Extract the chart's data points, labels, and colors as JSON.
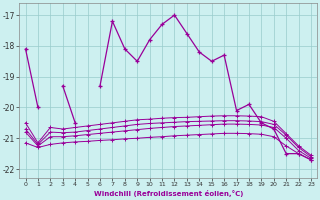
{
  "bg_color": "#cdf0f0",
  "grid_color": "#99cccc",
  "line_color": "#990099",
  "xlabel": "Windchill (Refroidissement éolien,°C)",
  "ylim": [
    -22.3,
    -16.6
  ],
  "yticks": [
    -22,
    -21,
    -20,
    -19,
    -18,
    -17
  ],
  "xticks": [
    0,
    1,
    2,
    3,
    4,
    5,
    6,
    7,
    8,
    9,
    10,
    11,
    12,
    13,
    14,
    15,
    16,
    17,
    18,
    19,
    20,
    21,
    22,
    23
  ],
  "main_line": [
    -18.1,
    -20.0,
    null,
    -19.3,
    -20.5,
    null,
    -19.3,
    -17.2,
    -18.1,
    -18.5,
    -17.8,
    -17.3,
    -17.0,
    -17.6,
    -18.2,
    -18.5,
    -18.3,
    -20.1,
    -19.9,
    -20.5,
    -20.7,
    -21.5,
    -21.5,
    -21.7
  ],
  "smooth_a": [
    -20.5,
    -21.15,
    -20.65,
    -20.7,
    -20.65,
    -20.6,
    -20.55,
    -20.5,
    -20.45,
    -20.4,
    -20.38,
    -20.35,
    -20.33,
    -20.32,
    -20.3,
    -20.28,
    -20.27,
    -20.27,
    -20.28,
    -20.3,
    -20.45,
    -20.85,
    -21.25,
    -21.55
  ],
  "smooth_b": [
    -20.7,
    -21.2,
    -20.8,
    -20.82,
    -20.8,
    -20.75,
    -20.7,
    -20.65,
    -20.6,
    -20.55,
    -20.52,
    -20.5,
    -20.48,
    -20.46,
    -20.45,
    -20.44,
    -20.43,
    -20.43,
    -20.44,
    -20.46,
    -20.55,
    -20.9,
    -21.3,
    -21.6
  ],
  "smooth_c": [
    -20.8,
    -21.25,
    -20.95,
    -20.95,
    -20.92,
    -20.88,
    -20.84,
    -20.8,
    -20.76,
    -20.72,
    -20.68,
    -20.65,
    -20.62,
    -20.6,
    -20.58,
    -20.56,
    -20.54,
    -20.54,
    -20.55,
    -20.57,
    -20.65,
    -21.0,
    -21.4,
    -21.65
  ],
  "smooth_d": [
    -21.15,
    -21.3,
    -21.2,
    -21.15,
    -21.12,
    -21.1,
    -21.07,
    -21.05,
    -21.02,
    -21.0,
    -20.97,
    -20.95,
    -20.92,
    -20.9,
    -20.88,
    -20.86,
    -20.84,
    -20.84,
    -20.85,
    -20.87,
    -20.95,
    -21.25,
    -21.5,
    -21.7
  ]
}
